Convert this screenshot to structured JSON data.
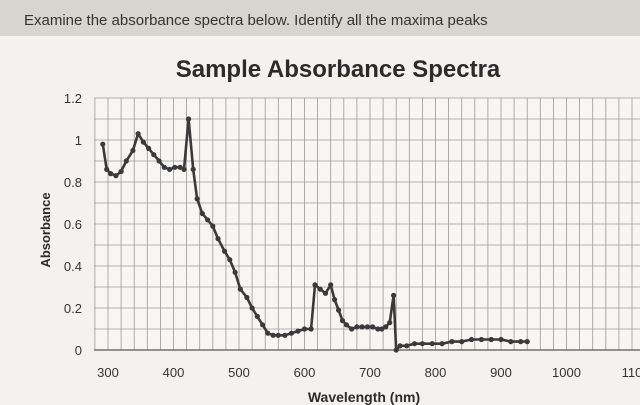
{
  "question": "Examine the absorbance spectra below. Identify all the maxima peaks",
  "chart_data": {
    "type": "line",
    "title": "Sample Absorbance Spectra",
    "xlabel": "Wavelength (nm)",
    "ylabel": "Absorbance",
    "xlim": [
      300,
      1100
    ],
    "ylim": [
      0,
      1.2
    ],
    "x_ticks": [
      "300",
      "400",
      "500",
      "600",
      "700",
      "800",
      "900",
      "1000",
      "110"
    ],
    "y_ticks": [
      "0",
      "0.2",
      "0.4",
      "0.6",
      "0.8",
      "1",
      "1.2"
    ],
    "grid": true,
    "series": [
      {
        "points": [
          [
            292,
            0.98
          ],
          [
            298,
            0.86
          ],
          [
            304,
            0.84
          ],
          [
            312,
            0.83
          ],
          [
            320,
            0.85
          ],
          [
            328,
            0.9
          ],
          [
            338,
            0.95
          ],
          [
            346,
            1.03
          ],
          [
            354,
            0.99
          ],
          [
            362,
            0.96
          ],
          [
            370,
            0.93
          ],
          [
            378,
            0.9
          ],
          [
            386,
            0.87
          ],
          [
            394,
            0.86
          ],
          [
            402,
            0.87
          ],
          [
            410,
            0.87
          ],
          [
            416,
            0.86
          ],
          [
            423,
            1.1
          ],
          [
            430,
            0.86
          ],
          [
            436,
            0.72
          ],
          [
            444,
            0.65
          ],
          [
            452,
            0.62
          ],
          [
            460,
            0.59
          ],
          [
            468,
            0.53
          ],
          [
            478,
            0.47
          ],
          [
            486,
            0.43
          ],
          [
            494,
            0.37
          ],
          [
            502,
            0.29
          ],
          [
            512,
            0.25
          ],
          [
            520,
            0.2
          ],
          [
            528,
            0.16
          ],
          [
            536,
            0.12
          ],
          [
            544,
            0.08
          ],
          [
            552,
            0.07
          ],
          [
            560,
            0.07
          ],
          [
            570,
            0.07
          ],
          [
            580,
            0.08
          ],
          [
            590,
            0.09
          ],
          [
            600,
            0.1
          ],
          [
            610,
            0.1
          ],
          [
            616,
            0.31
          ],
          [
            624,
            0.29
          ],
          [
            632,
            0.27
          ],
          [
            640,
            0.31
          ],
          [
            646,
            0.24
          ],
          [
            652,
            0.19
          ],
          [
            658,
            0.14
          ],
          [
            664,
            0.12
          ],
          [
            672,
            0.1
          ],
          [
            680,
            0.11
          ],
          [
            688,
            0.11
          ],
          [
            696,
            0.11
          ],
          [
            704,
            0.11
          ],
          [
            712,
            0.1
          ],
          [
            718,
            0.1
          ],
          [
            724,
            0.11
          ],
          [
            730,
            0.13
          ],
          [
            736,
            0.26
          ],
          [
            740,
            0.0
          ],
          [
            746,
            0.02
          ],
          [
            756,
            0.02
          ],
          [
            768,
            0.03
          ],
          [
            780,
            0.03
          ],
          [
            795,
            0.03
          ],
          [
            810,
            0.03
          ],
          [
            825,
            0.04
          ],
          [
            840,
            0.04
          ],
          [
            855,
            0.05
          ],
          [
            870,
            0.05
          ],
          [
            885,
            0.05
          ],
          [
            900,
            0.05
          ],
          [
            915,
            0.04
          ],
          [
            930,
            0.04
          ],
          [
            940,
            0.04
          ]
        ]
      }
    ],
    "line_color": "#3a3a3a"
  }
}
